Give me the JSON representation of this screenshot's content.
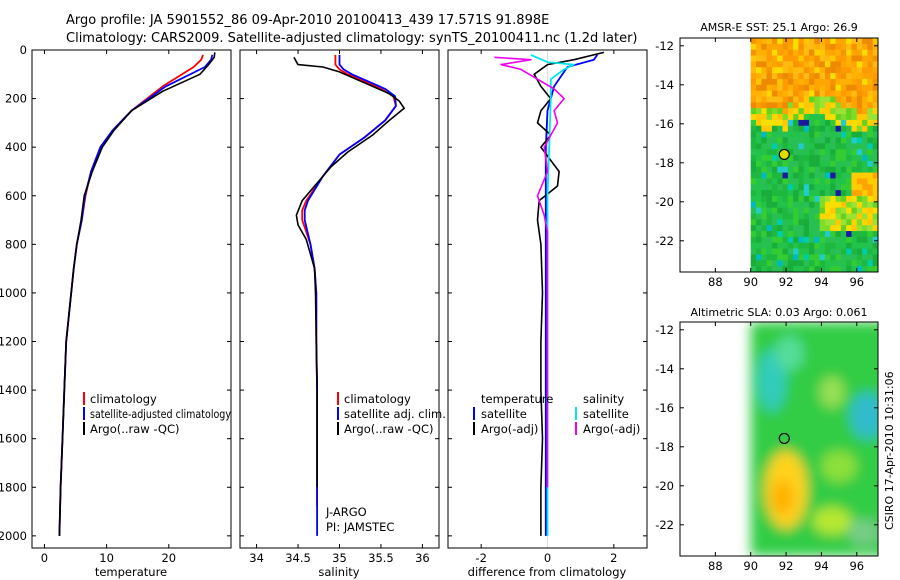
{
  "figure": {
    "title_line1": "Argo profile: JA 5901552_86 09-Apr-2010 20100413_439 17.571S 91.898E",
    "title_line2": "Climatology: CARS2009. Satellite-adjusted climatology: synTS_20100411.nc (1.2d later)",
    "side_caption": "CSIRO 17-Apr-2010 10:31:06",
    "pressure_ticks": [
      0,
      200,
      400,
      600,
      800,
      1000,
      1200,
      1400,
      1600,
      1800,
      2000
    ]
  },
  "chart_data": [
    {
      "type": "line",
      "id": "temperature",
      "xlabel": "temperature",
      "xlim": [
        -2,
        30
      ],
      "ylim": [
        0,
        2050
      ],
      "xticks": [
        0,
        10,
        20
      ],
      "legend": [
        "climatology",
        "satellite-adjusted climatology",
        "Argo(..raw -QC)"
      ],
      "colors": {
        "clim": "#ff0000",
        "sat": "#0000ff",
        "argo": "#000000"
      },
      "series": {
        "clim": {
          "x": [
            25.5,
            25.2,
            24.0,
            19.0,
            14.0,
            11.0,
            9.0,
            7.5,
            6.6,
            6.0,
            5.2,
            4.7,
            4.3,
            3.9,
            3.5,
            3.2,
            2.9,
            2.6,
            2.5,
            2.4
          ],
          "y": [
            20,
            40,
            70,
            150,
            250,
            330,
            400,
            500,
            600,
            700,
            800,
            900,
            1000,
            1100,
            1200,
            1400,
            1600,
            1800,
            1900,
            2000
          ]
        },
        "sat": {
          "x": [
            27.0,
            26.8,
            25.8,
            19.5,
            14.0,
            11.0,
            9.0,
            7.5,
            6.5,
            6.0,
            5.2,
            4.7,
            4.3,
            3.9,
            3.5,
            3.2,
            2.9,
            2.6,
            2.5,
            2.4
          ],
          "y": [
            20,
            40,
            70,
            150,
            250,
            330,
            400,
            500,
            600,
            700,
            800,
            900,
            1000,
            1100,
            1200,
            1400,
            1600,
            1800,
            1900,
            2000
          ]
        },
        "argo": {
          "x": [
            27.4,
            27.3,
            26.4,
            25.0,
            19.0,
            14.0,
            11.2,
            9.3,
            7.7,
            6.4,
            5.9,
            5.2,
            4.7,
            4.3,
            3.9,
            3.5,
            3.2,
            2.9,
            2.6,
            2.5,
            2.4
          ],
          "y": [
            10,
            30,
            60,
            100,
            170,
            250,
            330,
            400,
            500,
            600,
            700,
            800,
            900,
            1000,
            1100,
            1200,
            1400,
            1600,
            1800,
            1900,
            2000
          ]
        }
      }
    },
    {
      "type": "line",
      "id": "salinity",
      "xlabel": "salinity",
      "xlim": [
        33.8,
        36.2
      ],
      "ylim": [
        0,
        2050
      ],
      "xticks": [
        34,
        34.5,
        35,
        35.5,
        36
      ],
      "legend": [
        "climatology",
        "satellite adj. clim.",
        "Argo(..raw -QC)"
      ],
      "annotation": [
        "J-ARGO",
        "PI: JAMSTEC"
      ],
      "colors": {
        "clim": "#ff0000",
        "sat": "#0000ff",
        "argo": "#000000"
      },
      "series": {
        "clim": {
          "x": [
            34.95,
            34.95,
            35.0,
            35.1,
            35.3,
            35.5,
            35.65,
            35.68,
            35.55,
            35.3,
            35.0,
            34.8,
            34.6,
            34.55,
            34.55,
            34.65,
            34.7,
            34.72,
            34.72,
            34.73,
            34.73,
            34.73,
            34.73
          ],
          "y": [
            20,
            60,
            80,
            100,
            130,
            160,
            190,
            230,
            290,
            360,
            430,
            520,
            620,
            660,
            700,
            800,
            900,
            1000,
            1200,
            1400,
            1600,
            1800,
            1880
          ]
        },
        "sat": {
          "x": [
            35.0,
            35.0,
            35.05,
            35.15,
            35.35,
            35.55,
            35.67,
            35.68,
            35.55,
            35.3,
            35.0,
            34.8,
            34.62,
            34.58,
            34.58,
            34.65,
            34.7,
            34.72,
            34.72,
            34.73,
            34.73,
            34.73,
            34.73
          ],
          "y": [
            20,
            60,
            80,
            100,
            130,
            160,
            190,
            230,
            290,
            360,
            430,
            520,
            620,
            660,
            700,
            800,
            900,
            1000,
            1200,
            1400,
            1600,
            1800,
            2000
          ]
        },
        "argo": {
          "x": [
            34.45,
            34.5,
            34.8,
            35.0,
            35.2,
            35.4,
            35.6,
            35.72,
            35.78,
            35.6,
            35.4,
            35.1,
            34.9,
            34.7,
            34.55,
            34.48,
            34.5,
            34.6,
            34.7,
            34.71,
            34.72,
            34.73,
            34.73,
            34.73
          ],
          "y": [
            30,
            60,
            70,
            90,
            120,
            150,
            180,
            210,
            240,
            290,
            350,
            420,
            480,
            560,
            620,
            680,
            720,
            780,
            900,
            1000,
            1200,
            1400,
            1600,
            1800
          ]
        }
      }
    },
    {
      "type": "line",
      "id": "difference",
      "xlabel": "difference from climatology",
      "xlim": [
        -3,
        3
      ],
      "ylim": [
        0,
        2050
      ],
      "xticks": [
        -2,
        0,
        2
      ],
      "legend": {
        "temperature": "temperature",
        "salinity": "salinity",
        "t_sat": "satellite",
        "s_sat": "satellite",
        "t_argo": "Argo(-adj)",
        "s_argo": "Argo(-adj)"
      },
      "colors": {
        "t_sat": "#0000ff",
        "t_argo": "#000000",
        "s_sat": "#00e5ee",
        "s_argo": "#ee00ee"
      },
      "series": {
        "t_sat": {
          "x": [
            1.5,
            1.4,
            0.6,
            0.2,
            0.0,
            -0.05,
            -0.05,
            -0.05,
            -0.05,
            -0.05,
            -0.05,
            -0.05,
            -0.05,
            -0.05,
            -0.05,
            -0.05,
            -0.05,
            -0.05
          ],
          "y": [
            20,
            40,
            70,
            150,
            250,
            400,
            500,
            600,
            700,
            800,
            900,
            1000,
            1200,
            1400,
            1600,
            1800,
            1900,
            2000
          ]
        },
        "t_argo": {
          "x": [
            1.7,
            0.8,
            0.0,
            -0.4,
            -0.2,
            0.1,
            -0.2,
            -0.3,
            0.1,
            -0.2,
            0.35,
            0.3,
            -0.25,
            -0.3,
            -0.2,
            -0.15,
            -0.2,
            -0.2,
            -0.15,
            -0.2,
            -0.2
          ],
          "y": [
            10,
            40,
            60,
            100,
            150,
            200,
            250,
            300,
            350,
            400,
            500,
            560,
            620,
            700,
            800,
            1000,
            1200,
            1400,
            1600,
            1800,
            2000
          ]
        },
        "s_sat": {
          "x": [
            -0.5,
            0.0,
            0.8,
            0.5,
            0.1,
            0.1,
            0.05,
            0.0,
            0.0,
            0.0,
            0.0,
            0.0,
            0.0,
            0.0,
            0.0,
            0.0
          ],
          "y": [
            20,
            50,
            60,
            80,
            120,
            200,
            400,
            600,
            800,
            1000,
            1200,
            1400,
            1600,
            1800,
            1900,
            2000
          ]
        },
        "s_argo": {
          "x": [
            -1.6,
            -0.5,
            -1.4,
            -0.8,
            -0.3,
            0.2,
            0.5,
            0.2,
            0.3,
            -0.1,
            0.0,
            -0.3,
            -0.1,
            0.0,
            0.0,
            0.0,
            0.0,
            0.0,
            0.0,
            0.0
          ],
          "y": [
            30,
            40,
            60,
            80,
            120,
            160,
            200,
            250,
            300,
            400,
            500,
            600,
            680,
            750,
            900,
            1100,
            1300,
            1500,
            1700,
            1800
          ]
        }
      }
    },
    {
      "type": "heatmap",
      "id": "sst_map",
      "title": "AMSR-E SST: 25.1 Argo: 26.9",
      "xlim": [
        86,
        97.2
      ],
      "ylim": [
        -23.6,
        -11.6
      ],
      "xticks": [
        88,
        90,
        92,
        94,
        96
      ],
      "yticks": [
        -12,
        -14,
        -16,
        -18,
        -20,
        -22
      ],
      "data_lon_range": [
        90,
        97.2
      ],
      "argo_position": {
        "lon": 91.898,
        "lat": -17.571
      },
      "field_description": "warm (orange) north of about 15.5S, cooler (green) south"
    },
    {
      "type": "heatmap",
      "id": "sla_map",
      "title": "Altimetric SLA: 0.03 Argo: 0.061",
      "xlim": [
        86,
        97.2
      ],
      "ylim": [
        -23.6,
        -11.6
      ],
      "xticks": [
        88,
        90,
        92,
        94,
        96
      ],
      "yticks": [
        -12,
        -14,
        -16,
        -18,
        -20,
        -22
      ],
      "data_lon_range": [
        90,
        97.2
      ],
      "argo_position": {
        "lon": 91.898,
        "lat": -17.571
      },
      "field_description": "mostly green, cyan patches near 14S 91E and 16S 97E, yellow patch near 20S 92E"
    }
  ]
}
